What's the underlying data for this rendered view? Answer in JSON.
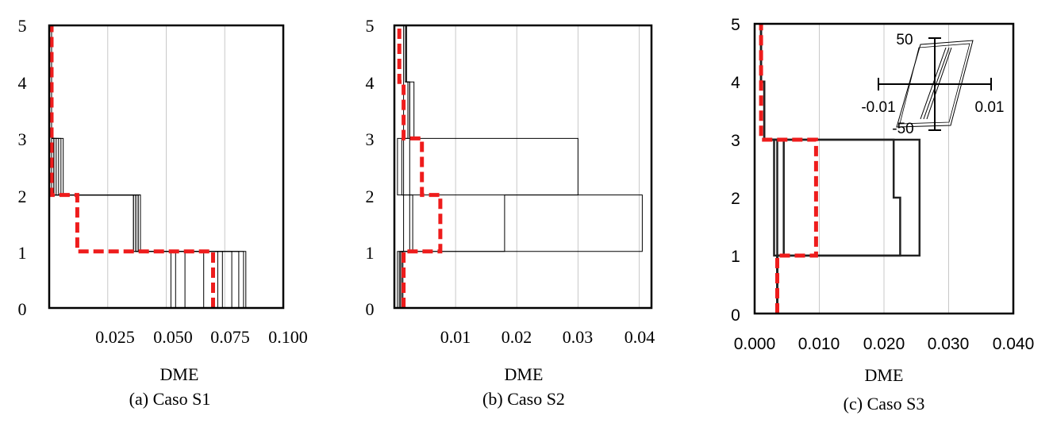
{
  "charts": [
    {
      "xlabel": "DME",
      "caption": "(a) Caso S1",
      "x_ticks": [
        "0.025",
        "0.050",
        "0.075",
        "0.100"
      ],
      "y_ticks": [
        "0",
        "1",
        "2",
        "3",
        "4",
        "5"
      ]
    },
    {
      "xlabel": "DME",
      "caption": "(b) Caso S2",
      "x_ticks": [
        "0.01",
        "0.02",
        "0.03",
        "0.04"
      ],
      "y_ticks": [
        "0",
        "1",
        "2",
        "3",
        "4",
        "5"
      ]
    },
    {
      "xlabel": "DME",
      "caption": "(c) Caso S3",
      "x_ticks": [
        "0.000",
        "0.010",
        "0.020",
        "0.030",
        "0.040"
      ],
      "y_ticks": [
        "0",
        "1",
        "2",
        "3",
        "4",
        "5"
      ],
      "inset": {
        "x_ticks": [
          "-0.01",
          "0.01"
        ],
        "y_ticks": [
          "50",
          "-50"
        ]
      }
    }
  ],
  "chart_data": [
    {
      "type": "line",
      "title": "(a) Caso S1",
      "xlabel": "DME",
      "ylabel": "",
      "xlim": [
        0,
        0.1
      ],
      "ylim": [
        0,
        5
      ],
      "grid": "vertical",
      "series": [
        {
          "style": "record",
          "x": [
            0.052,
            0.052,
            0.036,
            0.036,
            0.001,
            0.001,
            0.001,
            0.001
          ],
          "y": [
            0,
            1,
            1,
            2,
            2,
            3,
            3,
            5
          ]
        },
        {
          "style": "record",
          "x": [
            0.054,
            0.054,
            0.037,
            0.037,
            0.002,
            0.002,
            0.001,
            0.001
          ],
          "y": [
            0,
            1,
            1,
            2,
            2,
            3,
            3,
            5
          ]
        },
        {
          "style": "record",
          "x": [
            0.058,
            0.058,
            0.038,
            0.038,
            0.004,
            0.004,
            0.001,
            0.001
          ],
          "y": [
            0,
            1,
            1,
            2,
            2,
            3,
            3,
            5
          ]
        },
        {
          "style": "record",
          "x": [
            0.066,
            0.066,
            0.039,
            0.039,
            0.006,
            0.006,
            0.001,
            0.001
          ],
          "y": [
            0,
            1,
            1,
            2,
            2,
            3,
            3,
            5
          ]
        },
        {
          "style": "record",
          "x": [
            0.072,
            0.072,
            0.036,
            0.036,
            0.001,
            0.001,
            0.001,
            0.001
          ],
          "y": [
            0,
            1,
            1,
            2,
            2,
            3,
            3,
            5
          ]
        },
        {
          "style": "record",
          "x": [
            0.074,
            0.074,
            0.037,
            0.037,
            0.003,
            0.003,
            0.001,
            0.001
          ],
          "y": [
            0,
            1,
            1,
            2,
            2,
            3,
            3,
            5
          ]
        },
        {
          "style": "record",
          "x": [
            0.078,
            0.078,
            0.038,
            0.038,
            0.002,
            0.002,
            0.001,
            0.001
          ],
          "y": [
            0,
            1,
            1,
            2,
            2,
            3,
            3,
            5
          ]
        },
        {
          "style": "record",
          "x": [
            0.081,
            0.081,
            0.037,
            0.037,
            0.005,
            0.005,
            0.001,
            0.001
          ],
          "y": [
            0,
            1,
            1,
            2,
            2,
            3,
            3,
            5
          ]
        },
        {
          "style": "record",
          "x": [
            0.083,
            0.083,
            0.039,
            0.039,
            0.001,
            0.001,
            0.001,
            0.001
          ],
          "y": [
            0,
            1,
            1,
            2,
            2,
            3,
            3,
            5
          ]
        },
        {
          "style": "record",
          "x": [
            0.084,
            0.084,
            0.038,
            0.038,
            0.002,
            0.002,
            0.001,
            0.001
          ],
          "y": [
            0,
            1,
            1,
            2,
            2,
            3,
            3,
            5
          ]
        },
        {
          "style": "mean",
          "x": [
            0.07,
            0.07,
            0.012,
            0.012,
            0.001,
            0.001,
            0.001,
            0.001
          ],
          "y": [
            0,
            1,
            1,
            2,
            2,
            3,
            3,
            5
          ]
        }
      ]
    },
    {
      "type": "line",
      "title": "(b) Caso S2",
      "xlabel": "DME",
      "ylabel": "",
      "xlim": [
        0,
        0.042
      ],
      "ylim": [
        0,
        5
      ],
      "grid": "vertical",
      "series": [
        {
          "style": "record",
          "x": [
            0.0005,
            0.0005,
            0.0015,
            0.0015,
            0.0005,
            0.0005,
            0.0015,
            0.0015,
            0.0015,
            0.0015
          ],
          "y": [
            0,
            1,
            1,
            2,
            2,
            3,
            3,
            4,
            4,
            5
          ]
        },
        {
          "style": "record",
          "x": [
            0.0008,
            0.0008,
            0.0025,
            0.0025,
            0.0012,
            0.0012,
            0.0022,
            0.0022,
            0.0018,
            0.0018
          ],
          "y": [
            0,
            1,
            1,
            2,
            2,
            3,
            3,
            4,
            4,
            5
          ]
        },
        {
          "style": "record",
          "x": [
            0.001,
            0.001,
            0.018,
            0.018,
            0.03,
            0.03,
            0.0025,
            0.0025,
            0.0018,
            0.0018
          ],
          "y": [
            0,
            1,
            1,
            2,
            2,
            3,
            3,
            4,
            4,
            5
          ]
        },
        {
          "style": "record",
          "x": [
            0.0012,
            0.0012,
            0.003,
            0.003,
            0.0015,
            0.0015,
            0.0032,
            0.0032,
            0.002,
            0.002
          ],
          "y": [
            0,
            1,
            1,
            2,
            2,
            3,
            3,
            4,
            4,
            5
          ]
        },
        {
          "style": "record",
          "x": [
            0.0014,
            0.0014,
            0.0405,
            0.0405,
            0.0025,
            0.0025,
            0.0025,
            0.0025,
            0.002,
            0.002
          ],
          "y": [
            0,
            1,
            1,
            2,
            2,
            3,
            3,
            4,
            4,
            5
          ]
        },
        {
          "style": "mean",
          "x": [
            0.0015,
            0.0015,
            0.0075,
            0.0075,
            0.0045,
            0.0045,
            0.0015,
            0.0015,
            0.0008,
            0.0008
          ],
          "y": [
            0,
            1,
            1,
            2,
            2,
            3,
            3,
            4,
            4,
            5
          ]
        }
      ]
    },
    {
      "type": "line",
      "title": "(c) Caso S3",
      "xlabel": "DME",
      "ylabel": "",
      "xlim": [
        0,
        0.04
      ],
      "ylim": [
        0,
        5
      ],
      "grid": "vertical",
      "series": [
        {
          "style": "record",
          "x": [
            0.0035,
            0.0035,
            0.0045,
            0.0045,
            0.0045,
            0.0045,
            0.0015,
            0.0015,
            0.001,
            0.001
          ],
          "y": [
            0,
            1,
            1,
            2,
            2,
            3,
            3,
            4,
            4,
            5
          ]
        },
        {
          "style": "record",
          "x": [
            0.0035,
            0.0035,
            0.0225,
            0.0225,
            0.0215,
            0.0215,
            0.0015,
            0.0015,
            0.001,
            0.001
          ],
          "y": [
            0,
            1,
            1,
            2,
            2,
            3,
            3,
            4,
            4,
            5
          ]
        },
        {
          "style": "record",
          "x": [
            0.0035,
            0.0035,
            0.0255,
            0.0255,
            0.0255,
            0.0255,
            0.0015,
            0.0015,
            0.001,
            0.001
          ],
          "y": [
            0,
            1,
            1,
            2,
            2,
            3,
            3,
            4,
            4,
            5
          ]
        },
        {
          "style": "record",
          "x": [
            0.0035,
            0.0035,
            0.003,
            0.003,
            0.003,
            0.003,
            0.0015,
            0.0015,
            0.001,
            0.001
          ],
          "y": [
            0,
            1,
            1,
            2,
            2,
            3,
            3,
            4,
            4,
            5
          ]
        },
        {
          "style": "record",
          "x": [
            0.0035,
            0.0035,
            0.0035,
            0.0035,
            0.0035,
            0.0035,
            0.0015,
            0.0015,
            0.001,
            0.001
          ],
          "y": [
            0,
            1,
            1,
            2,
            2,
            3,
            3,
            4,
            4,
            5
          ]
        },
        {
          "style": "mean",
          "x": [
            0.0035,
            0.0035,
            0.0095,
            0.0095,
            0.0095,
            0.0095,
            0.001,
            0.001,
            0.001,
            0.001
          ],
          "y": [
            0,
            1,
            1,
            2,
            2,
            3,
            3,
            4,
            4,
            5
          ]
        }
      ]
    }
  ]
}
